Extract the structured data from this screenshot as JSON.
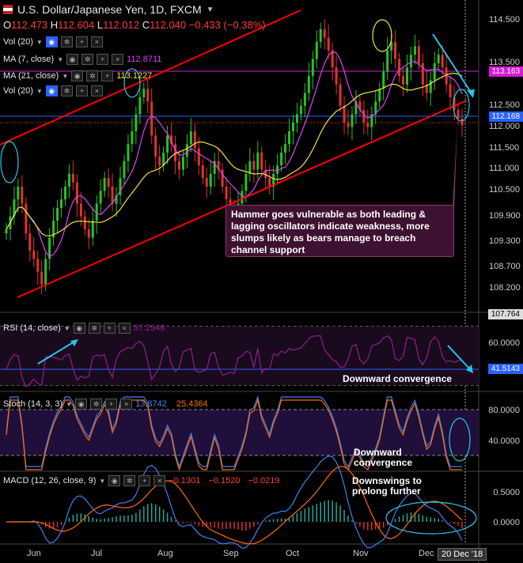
{
  "header": {
    "flag_icon": "us-flag-icon",
    "title": "U.S. Dollar/Japanese Yen, 1D, FXCM",
    "ohlc": {
      "o_label": "O",
      "o": "112.473",
      "h_label": "H",
      "h": "112.604",
      "l_label": "L",
      "l": "112.012",
      "c_label": "C",
      "c": "112.040",
      "change": "−0.433 (−0.38%)"
    }
  },
  "indicators": {
    "vol1": {
      "label": "Vol (20)"
    },
    "ma7": {
      "label": "MA (7, close)",
      "value": "112.8711",
      "color": "#e040fb"
    },
    "ma21": {
      "label": "MA (21, close)",
      "value": "113.1227",
      "color": "#f0e442"
    },
    "vol2": {
      "label": "Vol (20)"
    }
  },
  "price_axis": {
    "ticks": [
      "114.500",
      "113.500",
      "112.500",
      "112.000",
      "111.500",
      "111.000",
      "110.500",
      "109.900",
      "109.300",
      "108.700",
      "108.200"
    ],
    "tag_ma": "113.163",
    "tag_close": "112.168",
    "tag_low": "107.764"
  },
  "annotation": {
    "text": "Hammer goes vulnerable  as both leading & lagging oscillators indicate weakness, more slumps likely as bears manage to breach channel support"
  },
  "rsi": {
    "label": "RSI (14, close)",
    "value": "37.2946",
    "ticks": [
      "60.0000"
    ],
    "tag": "41.5143",
    "note": "Downward convergence"
  },
  "stoch": {
    "label": "Stoch (14, 3, 3)",
    "k": "13.8742",
    "d": "25.4364",
    "ticks": [
      "80.0000",
      "40.0000"
    ],
    "note_line1": "Downward",
    "note_line2": "convergence"
  },
  "macd": {
    "label": "MACD (12, 26, close, 9)",
    "hist": "−0.1301",
    "macd": "−0.1520",
    "signal": "−0.0219",
    "ticks": [
      "0.5000",
      "0.0000"
    ],
    "note_line1": "Downswings to",
    "note_line2": "prolong further"
  },
  "x_axis": {
    "labels": [
      "Jun",
      "Jul",
      "Aug",
      "Sep",
      "Oct",
      "Nov",
      "Dec"
    ],
    "date_tag": "20 Dec '18"
  },
  "colors": {
    "up": "#26c326",
    "down": "#e0332d",
    "channel": "#ff0000",
    "ma7": "#e040fb",
    "ma21": "#f0e442",
    "rsi": "#8e1f8e",
    "stoch_k": "#3b82f6",
    "stoch_d": "#ff6a00",
    "macd": "#3b82f6",
    "signal": "#ff6a00",
    "arrow": "#29c5e6",
    "ellipse": "#f0e442",
    "ellipse2": "#29c5e6"
  },
  "chart_data": {
    "type": "candlestick",
    "title": "U.S. Dollar/Japanese Yen, 1D, FXCM",
    "x_labels": [
      "Jun",
      "Jul",
      "Aug",
      "Sep",
      "Oct",
      "Nov",
      "Dec"
    ],
    "ylim": [
      107.7,
      114.8
    ],
    "series": [
      {
        "name": "Price (approx. daily closes)",
        "values": [
          109.6,
          109.9,
          110.3,
          110.6,
          110.2,
          109.5,
          109.1,
          108.9,
          108.6,
          108.3,
          108.9,
          109.4,
          109.8,
          110.1,
          110.3,
          110.6,
          110.9,
          110.7,
          110.2,
          109.9,
          109.6,
          109.4,
          109.8,
          110.2,
          110.5,
          110.8,
          110.6,
          110.2,
          110.4,
          110.8,
          111.2,
          111.6,
          111.9,
          112.3,
          112.7,
          112.9,
          112.6,
          111.8,
          111.3,
          111.1,
          111.4,
          111.8,
          111.6,
          111.2,
          111.0,
          111.3,
          111.6,
          111.9,
          111.5,
          111.1,
          110.8,
          110.6,
          110.9,
          111.2,
          111.0,
          110.6,
          110.3,
          110.1,
          109.9,
          110.2,
          110.5,
          110.9,
          111.2,
          111.0,
          111.4,
          111.0,
          110.8,
          110.6,
          110.9,
          111.1,
          111.4,
          111.6,
          111.9,
          112.1,
          112.3,
          112.5,
          112.8,
          113.2,
          113.6,
          114.0,
          114.3,
          114.1,
          113.8,
          113.4,
          113.0,
          112.5,
          112.1,
          112.0,
          112.3,
          112.6,
          112.4,
          112.1,
          112.0,
          112.3,
          112.6,
          112.9,
          113.3,
          113.8,
          114.0,
          113.6,
          113.2,
          113.0,
          113.4,
          113.7,
          113.9,
          113.5,
          113.0,
          112.8,
          113.1,
          113.5,
          113.7,
          113.4,
          113.0,
          112.7,
          112.4,
          112.2,
          112.04
        ]
      }
    ],
    "rsi_ticks": [
      "60.0000"
    ],
    "stoch_ticks": [
      "80.0000",
      "40.0000"
    ],
    "macd_ticks": [
      "0.5000",
      "0.0000"
    ]
  }
}
